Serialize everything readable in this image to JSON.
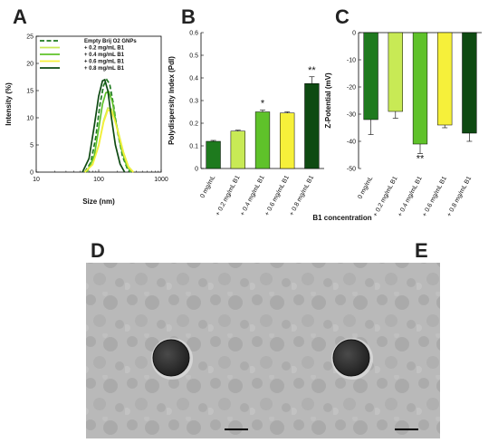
{
  "panel_labels": {
    "a": "A",
    "b": "B",
    "c": "C",
    "d": "D",
    "e": "E"
  },
  "colors": {
    "empty": "#1e7a1e",
    "b02": "#c8ea55",
    "b04": "#5fc22a",
    "b06": "#f6f03a",
    "b08": "#0e4a12",
    "micrograph_bg": "#b7b7b7",
    "particle": "#2a2a2a"
  },
  "chart_data": [
    {
      "id": "A",
      "type": "line",
      "xscale": "log",
      "xlim": [
        10,
        1000
      ],
      "ylim": [
        0,
        25
      ],
      "xlabel": "Size (nm)",
      "ylabel": "Intensity (%)",
      "xticks": [
        10,
        100,
        1000
      ],
      "xtick_labels": [
        "10",
        "100",
        "1000"
      ],
      "yticks": [
        0,
        5,
        10,
        15,
        20,
        25
      ],
      "ytick_labels": [
        "0",
        "5",
        "10",
        "15",
        "20",
        "25"
      ],
      "legend_position": "top-right",
      "series": [
        {
          "name": "Empty Brij O2 GNPs",
          "color": "#1e7a1e",
          "dashed": true,
          "points": [
            [
              60,
              0
            ],
            [
              75,
              1.8
            ],
            [
              90,
              6.5
            ],
            [
              105,
              12.5
            ],
            [
              120,
              16.0
            ],
            [
              135,
              17.0
            ],
            [
              150,
              16.2
            ],
            [
              170,
              12.8
            ],
            [
              200,
              7.5
            ],
            [
              240,
              3.0
            ],
            [
              290,
              0.5
            ],
            [
              320,
              0
            ]
          ]
        },
        {
          "name": "+ 0.2 mg/mL B1",
          "color": "#c8ea55",
          "dashed": false,
          "points": [
            [
              60,
              0
            ],
            [
              80,
              1.5
            ],
            [
              100,
              5.0
            ],
            [
              120,
              9.5
            ],
            [
              140,
              11.8
            ],
            [
              160,
              11.6
            ],
            [
              180,
              10.0
            ],
            [
              210,
              7.0
            ],
            [
              250,
              3.6
            ],
            [
              300,
              1.0
            ],
            [
              360,
              0
            ]
          ]
        },
        {
          "name": "+ 0.4 mg/mL B1",
          "color": "#5fc22a",
          "dashed": false,
          "points": [
            [
              65,
              0
            ],
            [
              85,
              3.0
            ],
            [
              100,
              8.0
            ],
            [
              115,
              12.5
            ],
            [
              130,
              14.6
            ],
            [
              145,
              14.8
            ],
            [
              165,
              13.0
            ],
            [
              190,
              9.0
            ],
            [
              230,
              4.3
            ],
            [
              280,
              1.2
            ],
            [
              330,
              0
            ]
          ]
        },
        {
          "name": "+ 0.6 mg/mL B1",
          "color": "#f6f03a",
          "dashed": false,
          "points": [
            [
              60,
              0
            ],
            [
              80,
              1.4
            ],
            [
              100,
              4.8
            ],
            [
              120,
              9.2
            ],
            [
              140,
              11.4
            ],
            [
              160,
              11.2
            ],
            [
              180,
              9.6
            ],
            [
              210,
              6.8
            ],
            [
              250,
              3.4
            ],
            [
              300,
              0.9
            ],
            [
              360,
              0
            ]
          ]
        },
        {
          "name": "+ 0.8 mg/mL B1",
          "color": "#0e4a12",
          "dashed": false,
          "points": [
            [
              55,
              0
            ],
            [
              70,
              2.5
            ],
            [
              85,
              8.5
            ],
            [
              100,
              14.0
            ],
            [
              115,
              16.8
            ],
            [
              125,
              17.0
            ],
            [
              140,
              15.0
            ],
            [
              160,
              10.0
            ],
            [
              185,
              5.0
            ],
            [
              220,
              1.5
            ],
            [
              260,
              0
            ]
          ]
        }
      ]
    },
    {
      "id": "B",
      "type": "bar",
      "ylabel": "Polydispersity Index (PdI)",
      "ylim": [
        0,
        0.6
      ],
      "yticks": [
        0,
        0.1,
        0.2,
        0.3,
        0.4,
        0.5,
        0.6
      ],
      "ytick_labels": [
        "0",
        "0.1",
        "0.2",
        "0.3",
        "0.4",
        "0.5",
        "0.6"
      ],
      "categories": [
        "0 mg/mL",
        "+ 0.2 mg/mL B1",
        "+ 0.4 mg/mL B1",
        "+ 0.6 mg/mL B1",
        "+ 0.8 mg/mL B1"
      ],
      "values": [
        0.12,
        0.165,
        0.25,
        0.245,
        0.375
      ],
      "errors": [
        0.004,
        0.004,
        0.008,
        0.005,
        0.03
      ],
      "colors": [
        "#1e7a1e",
        "#c8ea55",
        "#5fc22a",
        "#f6f03a",
        "#0e4a12"
      ],
      "significance": [
        "",
        "",
        "*",
        "",
        "**"
      ]
    },
    {
      "id": "C",
      "type": "bar",
      "ylabel": "Z-Potential (mV)",
      "ylim": [
        -50,
        0
      ],
      "yticks": [
        0,
        -10,
        -20,
        -30,
        -40,
        -50
      ],
      "ytick_labels": [
        "0",
        "-10",
        "-20",
        "-30",
        "-40",
        "-50"
      ],
      "categories": [
        "0 mg/mL",
        "+ 0.2 mg/mL B1",
        "+ 0.4 mg/mL B1",
        "+ 0.6 mg/mL B1",
        "+ 0.8 mg/mL B1"
      ],
      "values": [
        -32,
        -29,
        -41,
        -34,
        -37
      ],
      "errors": [
        5.5,
        2.5,
        3.5,
        1.0,
        3.0
      ],
      "colors": [
        "#1e7a1e",
        "#c8ea55",
        "#5fc22a",
        "#f6f03a",
        "#0e4a12"
      ],
      "significance": [
        "",
        "",
        "**",
        "",
        ""
      ]
    }
  ],
  "shared_xlabel": "B1 concentration"
}
